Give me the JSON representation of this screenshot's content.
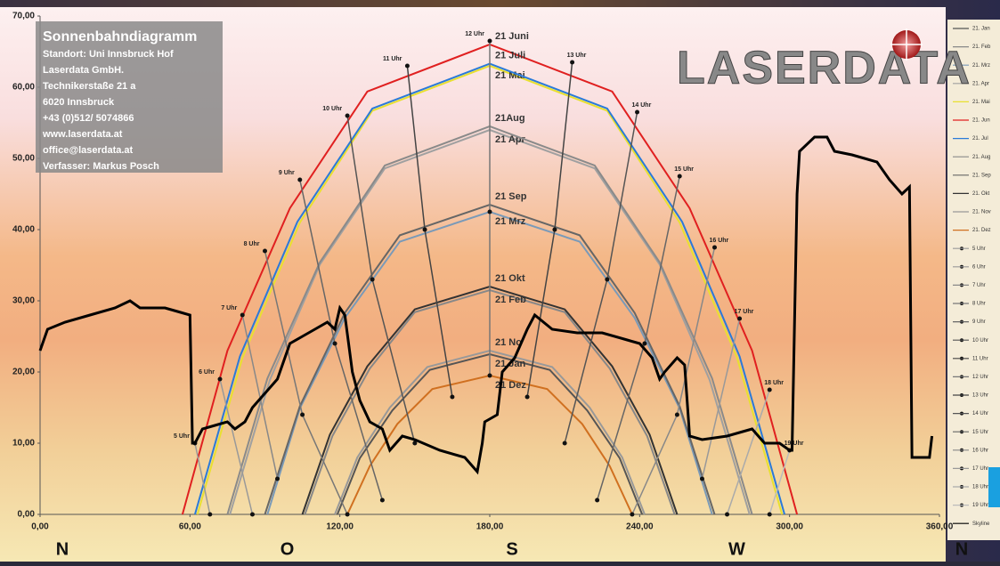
{
  "info": {
    "title": "Sonnenbahndiagramm",
    "lines": [
      "Standort: Uni Innsbruck Hof",
      "Laserdata GmbH.",
      "Technikerstaße 21 a",
      "6020 Innsbruck",
      "+43 (0)512/ 5074866",
      "www.laserdata.at",
      "office@laserdata.at",
      "Verfasser: Markus Posch"
    ],
    "logo": "LASERDATA"
  },
  "chart_data": {
    "type": "line",
    "xlim": [
      0,
      360
    ],
    "ylim": [
      0,
      70
    ],
    "xticks": [
      {
        "value": 0,
        "label": "0,00"
      },
      {
        "value": 60,
        "label": "60,00"
      },
      {
        "value": 120,
        "label": "120,00"
      },
      {
        "value": 180,
        "label": "180,00"
      },
      {
        "value": 240,
        "label": "240,00"
      },
      {
        "value": 300,
        "label": "300,00"
      },
      {
        "value": 360,
        "label": "360,00"
      }
    ],
    "yticks": [
      {
        "value": 0,
        "label": "0,00"
      },
      {
        "value": 10,
        "label": "10,00"
      },
      {
        "value": 20,
        "label": "20,00"
      },
      {
        "value": 30,
        "label": "30,00"
      },
      {
        "value": 40,
        "label": "40,00"
      },
      {
        "value": 50,
        "label": "50,00"
      },
      {
        "value": 60,
        "label": "60,00"
      },
      {
        "value": 70,
        "label": "70,00"
      }
    ],
    "compass": [
      {
        "value": 0,
        "label": "N"
      },
      {
        "value": 90,
        "label": "O"
      },
      {
        "value": 180,
        "label": "S"
      },
      {
        "value": 270,
        "label": "W"
      },
      {
        "value": 360,
        "label": "N"
      }
    ],
    "series": [
      {
        "name": "21. Jan",
        "label": "21 Jan",
        "color": "#555555",
        "x": [
          119,
          128,
          141,
          156,
          180,
          204,
          219,
          232,
          241
        ],
        "values": [
          0,
          7.9,
          14.6,
          20.3,
          22.5,
          20.3,
          14.6,
          7.9,
          0
        ]
      },
      {
        "name": "21. Feb",
        "label": "21 Feb",
        "color": "#888888",
        "x": [
          106,
          117,
          132,
          150,
          180,
          210,
          228,
          243,
          254
        ],
        "values": [
          0,
          11,
          20.5,
          28.4,
          31.5,
          28.4,
          20.5,
          11,
          0
        ]
      },
      {
        "name": "21. Mrz",
        "label": "21 Mrz",
        "color": "#7a9ab8",
        "x": [
          91,
          104,
          122,
          144,
          180,
          216,
          238,
          256,
          269
        ],
        "values": [
          0,
          14.9,
          27.6,
          38.3,
          42.5,
          38.3,
          27.6,
          14.9,
          0
        ]
      },
      {
        "name": "21. Apr",
        "label": "21 Apr",
        "color": "#a0a0a0",
        "x": [
          76,
          92,
          112,
          138,
          180,
          222,
          248,
          268,
          284
        ],
        "values": [
          0,
          18.9,
          35.1,
          48.6,
          54,
          48.6,
          35.1,
          18.9,
          0
        ]
      },
      {
        "name": "21. Mai",
        "label": "21 Mai",
        "color": "#e8e030",
        "x": [
          63,
          81,
          104,
          133,
          180,
          227,
          256,
          279,
          297
        ],
        "values": [
          0,
          22,
          41,
          56.7,
          63,
          56.7,
          41,
          22,
          0
        ]
      },
      {
        "name": "21. Jun",
        "label": "21 Juni",
        "color": "#e02020",
        "x": [
          57,
          75,
          100,
          131,
          180,
          229,
          260,
          285,
          303
        ],
        "values": [
          0,
          23,
          43,
          59.4,
          66,
          59.4,
          43,
          23,
          0
        ]
      },
      {
        "name": "21. Jul",
        "label": "21 Juli",
        "color": "#2a7ad8",
        "x": [
          62,
          80,
          103,
          133,
          180,
          227,
          257,
          280,
          298
        ],
        "values": [
          0,
          22.2,
          41.1,
          57,
          63.3,
          57,
          41.1,
          22.2,
          0
        ]
      },
      {
        "name": "21. Aug",
        "label": "21Aug",
        "color": "#8a8a8a",
        "x": [
          75,
          91,
          112,
          138,
          180,
          222,
          248,
          269,
          285
        ],
        "values": [
          0,
          19.1,
          35.4,
          49,
          54.5,
          49,
          35.4,
          19.1,
          0
        ]
      },
      {
        "name": "21. Sep",
        "label": "21 Sep",
        "color": "#666666",
        "x": [
          90,
          104,
          122,
          144,
          180,
          216,
          238,
          256,
          270
        ],
        "values": [
          0,
          15.2,
          28.3,
          39.2,
          43.5,
          39.2,
          28.3,
          15.2,
          0
        ]
      },
      {
        "name": "21. Okt",
        "label": "21 Okt",
        "color": "#333333",
        "x": [
          105,
          116,
          131,
          150,
          180,
          210,
          229,
          244,
          255
        ],
        "values": [
          0,
          11.2,
          20.8,
          28.8,
          32,
          28.8,
          20.8,
          11.2,
          0
        ]
      },
      {
        "name": "21. Nov",
        "label": "21 No",
        "color": "#999999",
        "x": [
          118,
          127,
          140,
          155,
          180,
          205,
          220,
          233,
          242
        ],
        "values": [
          0,
          8,
          15,
          20.7,
          23,
          20.7,
          15,
          8,
          0
        ]
      },
      {
        "name": "21. Dez",
        "label": "21 Dez",
        "color": "#d07020",
        "x": [
          123,
          132,
          143,
          157,
          180,
          203,
          217,
          228,
          237
        ],
        "values": [
          0,
          6.8,
          12.7,
          17.6,
          19.5,
          17.6,
          12.7,
          6.8,
          0
        ]
      },
      {
        "name": "5 Uhr",
        "color": "#999999",
        "marker": true,
        "x": [
          62,
          68
        ],
        "values": [
          10,
          0
        ]
      },
      {
        "name": "6 Uhr",
        "color": "#999999",
        "marker": true,
        "x": [
          72,
          85
        ],
        "values": [
          19,
          0
        ]
      },
      {
        "name": "7 Uhr",
        "color": "#888888",
        "marker": true,
        "x": [
          81,
          95
        ],
        "values": [
          28,
          5
        ]
      },
      {
        "name": "8 Uhr",
        "color": "#777777",
        "marker": true,
        "x": [
          90,
          105,
          123
        ],
        "values": [
          37,
          14,
          0
        ]
      },
      {
        "name": "9 Uhr",
        "color": "#666666",
        "marker": true,
        "x": [
          104,
          118,
          137
        ],
        "values": [
          47,
          24,
          2
        ]
      },
      {
        "name": "10 Uhr",
        "color": "#555555",
        "marker": true,
        "x": [
          123,
          133,
          150
        ],
        "values": [
          56,
          33,
          10
        ]
      },
      {
        "name": "11 Uhr",
        "color": "#444444",
        "marker": true,
        "x": [
          147,
          154,
          165
        ],
        "values": [
          63,
          40,
          16.5
        ]
      },
      {
        "name": "12 Uhr",
        "color": "#777777",
        "marker": true,
        "x": [
          180,
          180,
          180
        ],
        "values": [
          66.5,
          42.5,
          19.5
        ]
      },
      {
        "name": "13 Uhr",
        "color": "#444444",
        "marker": true,
        "x": [
          213,
          206,
          195
        ],
        "values": [
          63.5,
          40,
          16.5
        ]
      },
      {
        "name": "14 Uhr",
        "color": "#555555",
        "marker": true,
        "x": [
          239,
          227,
          210
        ],
        "values": [
          56.5,
          33,
          10
        ]
      },
      {
        "name": "15 Uhr",
        "color": "#666666",
        "marker": true,
        "x": [
          256,
          242,
          223
        ],
        "values": [
          47.5,
          24,
          2
        ]
      },
      {
        "name": "16 Uhr",
        "color": "#888888",
        "marker": true,
        "x": [
          270,
          255,
          237
        ],
        "values": [
          37.5,
          14,
          0
        ]
      },
      {
        "name": "17 Uhr",
        "color": "#999999",
        "marker": true,
        "x": [
          280,
          265
        ],
        "values": [
          27.5,
          5
        ]
      },
      {
        "name": "18 Uhr",
        "color": "#aaaaaa",
        "marker": true,
        "x": [
          292,
          275
        ],
        "values": [
          17.5,
          0
        ]
      },
      {
        "name": "19 Uhr",
        "color": "#bbbbbb",
        "marker": true,
        "x": [
          300,
          292
        ],
        "values": [
          9,
          0
        ]
      },
      {
        "name": "Skyline",
        "color": "#000000",
        "width": 3,
        "x": [
          0,
          3,
          10,
          20,
          30,
          36,
          40,
          50,
          55,
          60,
          61,
          62,
          65,
          70,
          75,
          78,
          82,
          85,
          90,
          95,
          100,
          105,
          110,
          115,
          118,
          120,
          122,
          125,
          128,
          132,
          137,
          140,
          145,
          150,
          160,
          170,
          175,
          177,
          178,
          183,
          185,
          190,
          195,
          198,
          205,
          215,
          225,
          235,
          240,
          245,
          248,
          250,
          255,
          258,
          260,
          265,
          275,
          285,
          290,
          296,
          300,
          301,
          303,
          304,
          310,
          315,
          318,
          325,
          330,
          335,
          340,
          345,
          348,
          349,
          352,
          356,
          357
        ],
        "values": [
          23,
          26,
          27,
          28,
          29,
          30,
          29,
          29,
          28.5,
          28,
          10,
          10,
          12,
          12.5,
          13,
          12,
          13,
          15,
          17,
          19,
          24,
          25,
          26,
          27,
          26,
          29,
          28,
          20,
          16,
          13,
          12,
          9,
          11,
          10.5,
          9,
          8,
          6,
          10,
          13,
          14,
          20,
          22,
          26,
          28,
          26,
          25.5,
          25.5,
          24.5,
          24,
          22,
          19,
          20,
          22,
          21,
          11,
          10.5,
          11,
          12,
          10,
          10,
          9,
          9,
          45,
          51,
          53,
          53,
          51,
          50.5,
          50,
          49.5,
          47,
          45,
          46,
          8,
          8,
          8,
          11
        ]
      }
    ]
  }
}
